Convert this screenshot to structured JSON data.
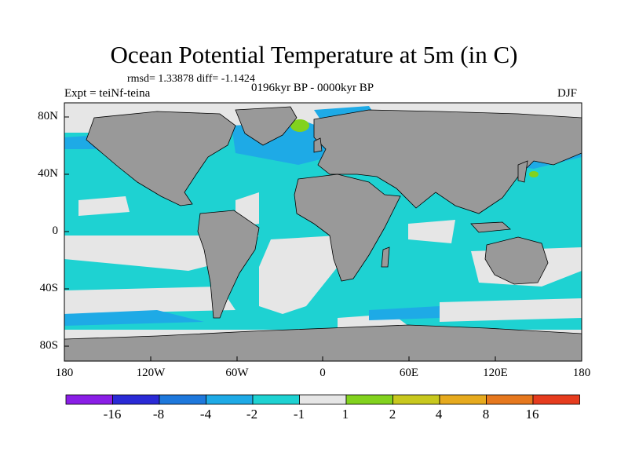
{
  "title": "Ocean Potential Temperature at 5m (in C)",
  "stats_line": "rmsd= 1.33878 diff= -1.1424",
  "experiment_label": "Expt = teiNf-teina",
  "period_label": "0196kyr BP - 0000kyr BP",
  "season_label": "DJF",
  "lat_ticks": [
    "80N",
    "40N",
    "0",
    "40S",
    "80S"
  ],
  "lon_ticks": [
    "180",
    "120W",
    "60W",
    "0",
    "60E",
    "120E",
    "180"
  ],
  "colorbar": {
    "labels": [
      "-16",
      "-8",
      "-4",
      "-2",
      "-1",
      "1",
      "2",
      "4",
      "8",
      "16"
    ],
    "colors": [
      "#8a1ee6",
      "#2a2ad6",
      "#1e78dc",
      "#1eaae6",
      "#1ed2d2",
      "#e6e6e6",
      "#82d21e",
      "#c8c81e",
      "#e6aa1e",
      "#e6781e",
      "#e63c1e"
    ]
  },
  "colors": {
    "land": "#999999",
    "ocean_cool": "#1ed2d2",
    "ocean_neutral": "#e6e6e6",
    "ocean_cold": "#1eaae6"
  }
}
